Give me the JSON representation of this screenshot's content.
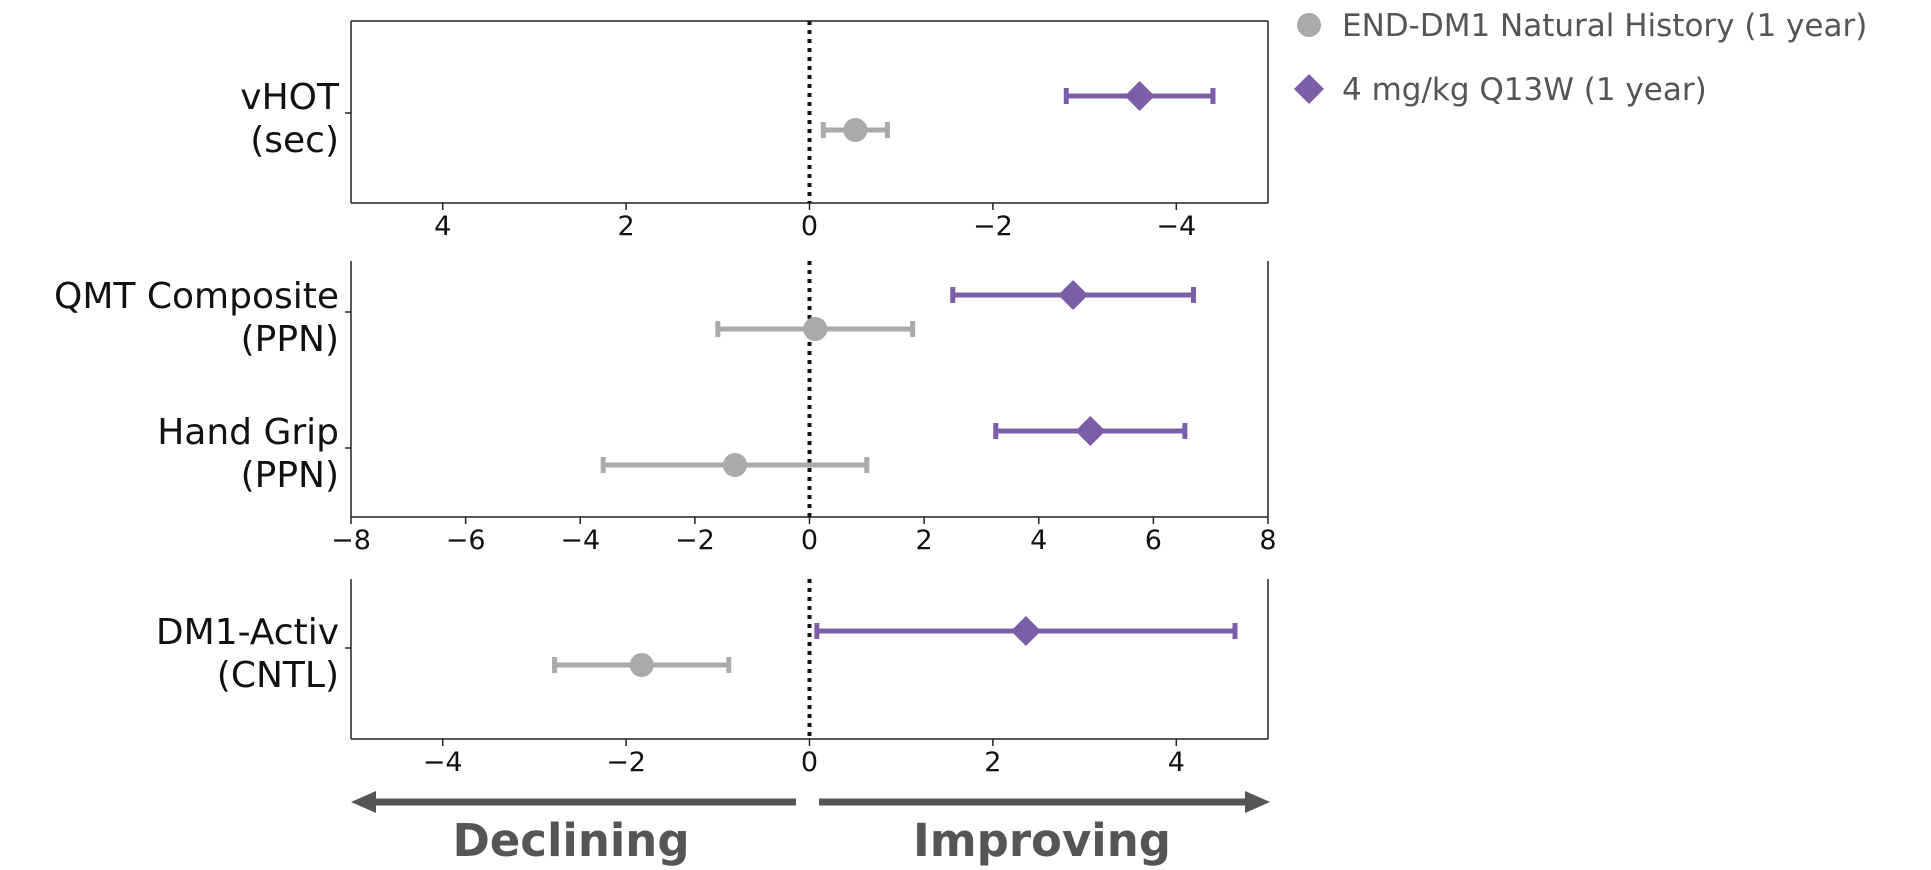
{
  "chart_data": [
    {
      "type": "forest",
      "categories": [
        [
          "vHOT",
          "(sec)"
        ]
      ],
      "series": [
        {
          "name": "END-DM1 Natural History (1 year)",
          "color": "#aaaaaa",
          "marker": "circle",
          "values": [
            -0.5
          ],
          "errors": [
            0.35
          ]
        },
        {
          "name": "4 mg/kg Q13W (1 year)",
          "color": "#7b5ea7",
          "marker": "diamond",
          "values": [
            -3.6
          ],
          "errors": [
            0.8
          ]
        }
      ],
      "xlim": [
        5,
        -5
      ],
      "xticks": [
        4,
        2,
        0,
        {
          "value": -2,
          "label": "−2"
        },
        {
          "value": -4,
          "label": "−4"
        }
      ]
    },
    {
      "type": "forest",
      "categories": [
        [
          "QMT Composite",
          "(PPN)"
        ],
        [
          "Hand Grip",
          "(PPN)"
        ]
      ],
      "series": [
        {
          "color": "#aaaaaa",
          "marker": "circle",
          "values": [
            0.1,
            -1.3
          ],
          "errors": [
            1.7,
            2.3
          ]
        },
        {
          "color": "#7b5ea7",
          "marker": "diamond",
          "values": [
            4.6,
            4.9
          ],
          "errors": [
            2.1,
            1.65
          ]
        }
      ],
      "xlim": [
        -8,
        8
      ],
      "xticks": [
        {
          "value": -8,
          "label": "−8"
        },
        {
          "value": -6,
          "label": "−6"
        },
        {
          "value": -4,
          "label": "−4"
        },
        {
          "value": -2,
          "label": "−2"
        },
        0,
        2,
        4,
        6,
        8
      ]
    },
    {
      "type": "forest",
      "categories": [
        [
          "DM1-Activ",
          "(CNTL)"
        ]
      ],
      "series": [
        {
          "color": "#aaaaaa",
          "marker": "circle",
          "values": [
            -1.83
          ],
          "errors": [
            0.95
          ]
        },
        {
          "color": "#7b5ea7",
          "marker": "diamond",
          "values": [
            2.36
          ],
          "errors": [
            2.28
          ]
        }
      ],
      "xlim": [
        -5,
        5
      ],
      "xticks": [
        {
          "value": -4,
          "label": "−4"
        },
        {
          "value": -2,
          "label": "−2"
        },
        0,
        2,
        4
      ]
    }
  ],
  "annotations": [
    "Declining",
    "Improving"
  ]
}
